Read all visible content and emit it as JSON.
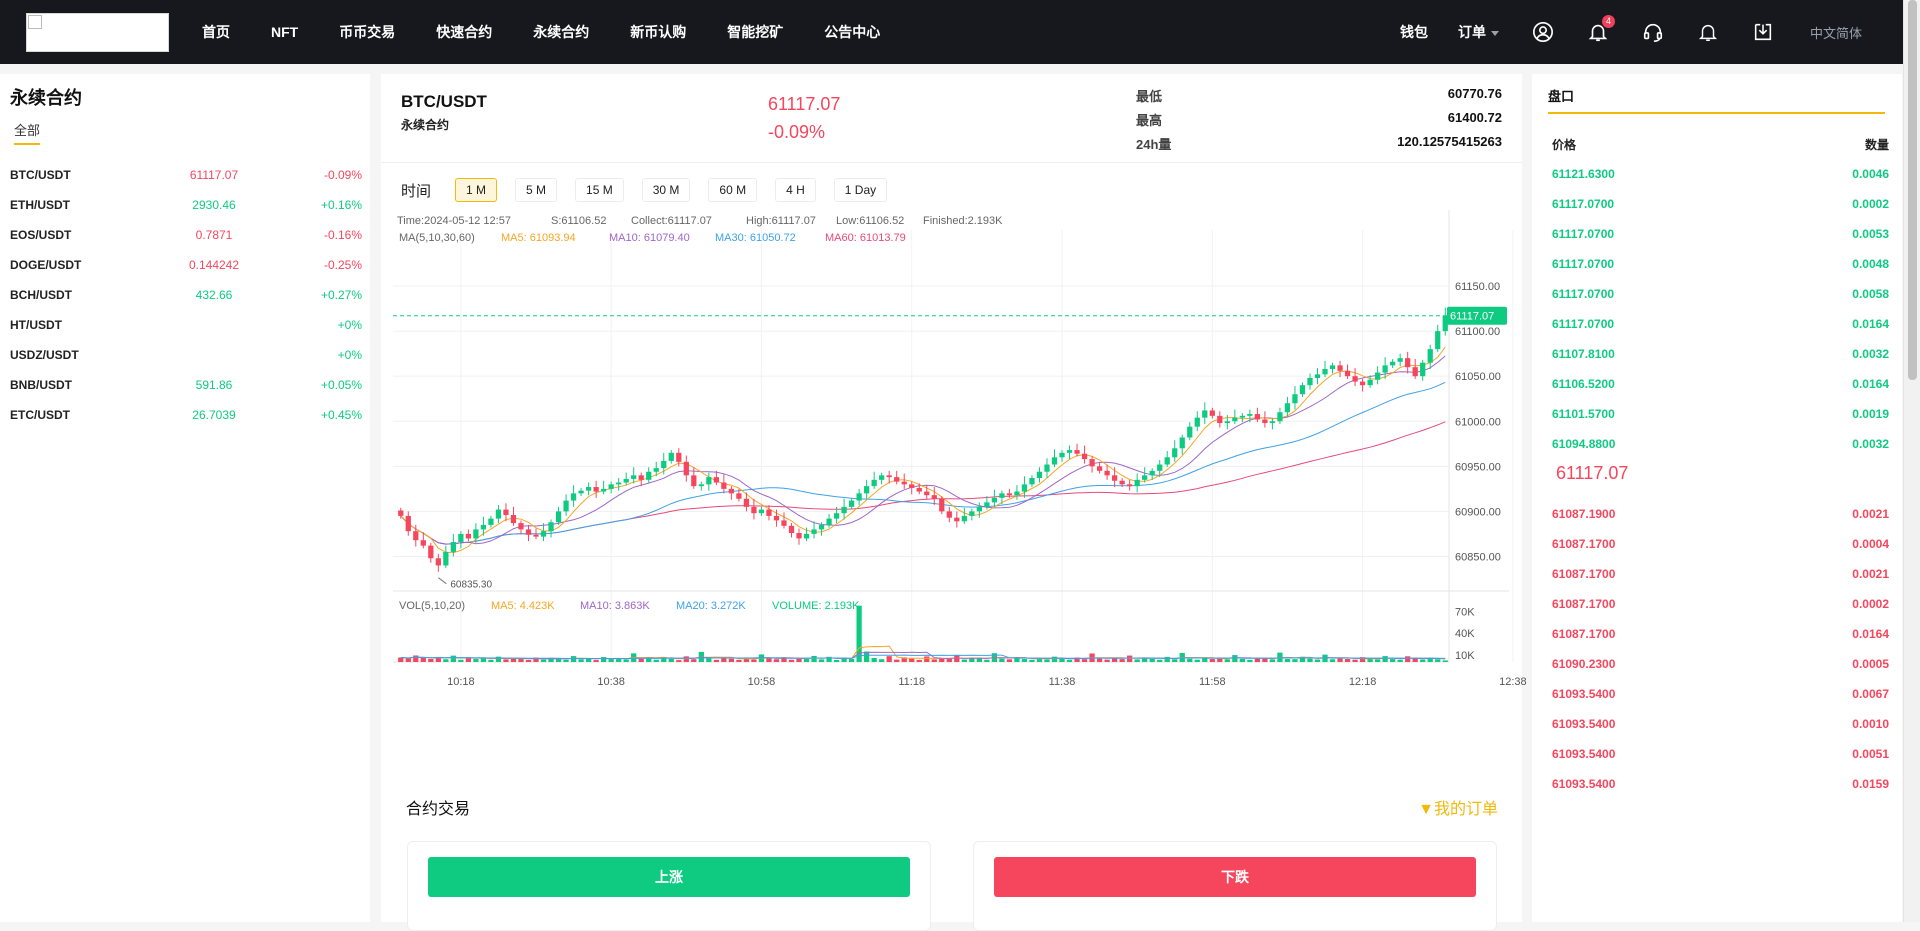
{
  "nav": {
    "items": [
      "首页",
      "NFT",
      "币币交易",
      "快速合约",
      "永续合约",
      "新币认购",
      "智能挖矿",
      "公告中心"
    ],
    "wallet": "钱包",
    "orders": "订单",
    "notification_count": "4",
    "language": "中文简体",
    "icons": [
      "user-icon",
      "bell-icon",
      "headset-icon",
      "bell-outline-icon",
      "download-icon"
    ]
  },
  "left": {
    "title": "永续合约",
    "tab": "全部",
    "pairs": [
      {
        "name": "BTC/USDT",
        "price": "61117.07",
        "change": "-0.09%",
        "dir": "down"
      },
      {
        "name": "ETH/USDT",
        "price": "2930.46",
        "change": "+0.16%",
        "dir": "up"
      },
      {
        "name": "EOS/USDT",
        "price": "0.7871",
        "change": "-0.16%",
        "dir": "down"
      },
      {
        "name": "DOGE/USDT",
        "price": "0.144242",
        "change": "-0.25%",
        "dir": "down"
      },
      {
        "name": "BCH/USDT",
        "price": "432.66",
        "change": "+0.27%",
        "dir": "up"
      },
      {
        "name": "HT/USDT",
        "price": "",
        "change": "+0%",
        "dir": "up"
      },
      {
        "name": "USDZ/USDT",
        "price": "",
        "change": "+0%",
        "dir": "up"
      },
      {
        "name": "BNB/USDT",
        "price": "591.86",
        "change": "+0.05%",
        "dir": "up"
      },
      {
        "name": "ETC/USDT",
        "price": "26.7039",
        "change": "+0.45%",
        "dir": "up"
      }
    ]
  },
  "ticker": {
    "symbol": "BTC/USDT",
    "subtitle": "永续合约",
    "last": "61117.07",
    "change": "-0.09%",
    "low_label": "最低",
    "low": "60770.76",
    "high_label": "最高",
    "high": "61400.72",
    "vol_label": "24h量",
    "vol": "120.12575415263"
  },
  "periods": {
    "label": "时间",
    "items": [
      "1 M",
      "5 M",
      "15 M",
      "30 M",
      "60 M",
      "4 H",
      "1 Day"
    ],
    "active": 0
  },
  "chart_data": {
    "type": "candlestick",
    "info": {
      "time": "Time:2024-05-12 12:57",
      "s": "S:61106.52",
      "collect": "Collect:61117.07",
      "high": "High:61117.07",
      "low": "Low:61106.52",
      "finished": "Finished:2.193K"
    },
    "ma_legend": {
      "label": "MA(5,10,30,60)",
      "ma5": "MA5: 61093.94",
      "ma10": "MA10: 61079.40",
      "ma30": "MA30: 61050.72",
      "ma60": "MA60: 61013.79"
    },
    "vol_legend": {
      "label": "VOL(5,10,20)",
      "ma5": "MA5: 4.423K",
      "ma10": "MA10: 3.863K",
      "ma20": "MA20: 3.272K",
      "volume": "VOLUME: 2.193K"
    },
    "price_ticks": [
      61150,
      61100,
      61050,
      61000,
      60950,
      60900,
      60850
    ],
    "price_tick_labels": [
      "61150.00",
      "61100.00",
      "61050.00",
      "61000.00",
      "60950.00",
      "60900.00",
      "60850.00"
    ],
    "ylim": [
      60815,
      61190
    ],
    "last_price": 61117.07,
    "last_price_label": "61117.07",
    "min_label": "60835.30",
    "min_value": 60835.3,
    "vol_ticks": [
      "70K",
      "40K",
      "10K"
    ],
    "vol_tick_values": [
      70000,
      40000,
      10000
    ],
    "vol_ylim": [
      0,
      90000
    ],
    "x_labels": [
      "10:18",
      "10:38",
      "10:58",
      "11:18",
      "11:38",
      "11:58",
      "12:18",
      "12:38"
    ],
    "x_label_index": [
      8,
      28,
      48,
      68,
      88,
      108,
      128,
      148
    ],
    "closes": [
      60895,
      60878,
      60868,
      60862,
      60848,
      60840,
      60855,
      60866,
      60875,
      60870,
      60880,
      60885,
      60892,
      60902,
      60896,
      60887,
      60880,
      60874,
      60872,
      60878,
      60888,
      60900,
      60912,
      60920,
      60923,
      60927,
      60922,
      60925,
      60930,
      60932,
      60936,
      60940,
      60935,
      60944,
      60948,
      60956,
      60965,
      60955,
      60940,
      60928,
      60930,
      60938,
      60932,
      60925,
      60920,
      60914,
      60905,
      60898,
      60902,
      60895,
      60890,
      60884,
      60876,
      60870,
      60875,
      60880,
      60885,
      60892,
      60898,
      60905,
      60912,
      60920,
      60928,
      60935,
      60940,
      60938,
      60933,
      60930,
      60926,
      60922,
      60918,
      60914,
      60900,
      60893,
      60889,
      60895,
      60900,
      60905,
      60910,
      60915,
      60920,
      60918,
      60922,
      60930,
      60937,
      60944,
      60952,
      60960,
      60965,
      60968,
      60964,
      60958,
      60950,
      60945,
      60940,
      60934,
      60930,
      60928,
      60935,
      60940,
      60945,
      60952,
      60960,
      60970,
      60982,
      60994,
      61004,
      61012,
      61006,
      60998,
      61000,
      61004,
      61006,
      61008,
      61002,
      60998,
      61000,
      61010,
      61020,
      61030,
      61040,
      61048,
      61052,
      61058,
      61062,
      61056,
      61050,
      61044,
      61040,
      61046,
      61054,
      61062,
      61066,
      61070,
      61060,
      61050,
      61065,
      61080,
      61100,
      61117.07
    ],
    "volumes": [
      6200,
      4800,
      9000,
      5500,
      4200,
      7000,
      3800,
      8800,
      3000,
      6500,
      4100,
      5600,
      2900,
      7400,
      3600,
      5100,
      4400,
      2800,
      6100,
      3300,
      5800,
      4600,
      3100,
      8200,
      3700,
      5000,
      2700,
      6900,
      4000,
      5300,
      3400,
      12000,
      4700,
      6600,
      3200,
      5900,
      4300,
      2600,
      7800,
      3900,
      14000,
      5200,
      3000,
      6300,
      4500,
      2900,
      5700,
      3500,
      10500,
      4900,
      3800,
      6800,
      3100,
      5400,
      4200,
      8400,
      3600,
      7200,
      2800,
      5000,
      4400,
      78000,
      14500,
      5600,
      3900,
      8100,
      3300,
      6400,
      4700,
      2900,
      7700,
      3600,
      5100,
      4200,
      9200,
      3400,
      6000,
      4800,
      3100,
      12200,
      4600,
      3700,
      6700,
      4100,
      2900,
      5800,
      3500,
      7400,
      4300,
      3000,
      6200,
      3900,
      11800,
      4700,
      3300,
      5400,
      4000,
      8900,
      3600,
      5200,
      4400,
      3100,
      7100,
      3800,
      12500,
      4500,
      3200,
      6500,
      4100,
      5600,
      3700,
      9600,
      4300,
      3000,
      6100,
      4800,
      3500,
      13000,
      4200,
      3900,
      7300,
      4600,
      3400,
      10200,
      3800,
      5300,
      4100,
      3200,
      6700,
      4400,
      3600,
      8200,
      4000,
      3100,
      7900,
      4700,
      3400,
      6000,
      3800,
      2193
    ],
    "candle_color_up": "#0ecb81",
    "candle_color_down": "#f6465d",
    "ma_colors": {
      "ma5": "#f5a623",
      "ma10": "#a066c8",
      "ma30": "#3ea2e8",
      "ma60": "#e8497a"
    }
  },
  "trade": {
    "title": "合约交易",
    "my_orders": "▼我的订单",
    "rise": "上涨",
    "fall": "下跌"
  },
  "orderbook": {
    "title": "盘口",
    "price_label": "价格",
    "qty_label": "数量",
    "mid_price": "61117.07",
    "bids": [
      {
        "price": "61121.6300",
        "qty": "0.0046"
      },
      {
        "price": "61117.0700",
        "qty": "0.0002"
      },
      {
        "price": "61117.0700",
        "qty": "0.0053"
      },
      {
        "price": "61117.0700",
        "qty": "0.0048"
      },
      {
        "price": "61117.0700",
        "qty": "0.0058"
      },
      {
        "price": "61117.0700",
        "qty": "0.0164"
      },
      {
        "price": "61107.8100",
        "qty": "0.0032"
      },
      {
        "price": "61106.5200",
        "qty": "0.0164"
      },
      {
        "price": "61101.5700",
        "qty": "0.0019"
      },
      {
        "price": "61094.8800",
        "qty": "0.0032"
      }
    ],
    "asks": [
      {
        "price": "61087.1900",
        "qty": "0.0021"
      },
      {
        "price": "61087.1700",
        "qty": "0.0004"
      },
      {
        "price": "61087.1700",
        "qty": "0.0021"
      },
      {
        "price": "61087.1700",
        "qty": "0.0002"
      },
      {
        "price": "61087.1700",
        "qty": "0.0164"
      },
      {
        "price": "61090.2300",
        "qty": "0.0005"
      },
      {
        "price": "61093.5400",
        "qty": "0.0067"
      },
      {
        "price": "61093.5400",
        "qty": "0.0010"
      },
      {
        "price": "61093.5400",
        "qty": "0.0051"
      },
      {
        "price": "61093.5400",
        "qty": "0.0159"
      }
    ]
  }
}
